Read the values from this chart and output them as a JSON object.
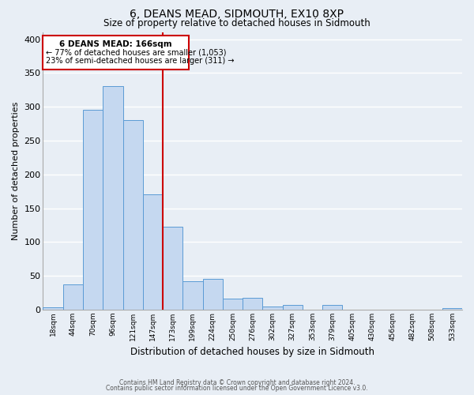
{
  "title": "6, DEANS MEAD, SIDMOUTH, EX10 8XP",
  "subtitle": "Size of property relative to detached houses in Sidmouth",
  "xlabel": "Distribution of detached houses by size in Sidmouth",
  "ylabel": "Number of detached properties",
  "categories": [
    "18sqm",
    "44sqm",
    "70sqm",
    "96sqm",
    "121sqm",
    "147sqm",
    "173sqm",
    "199sqm",
    "224sqm",
    "250sqm",
    "276sqm",
    "302sqm",
    "327sqm",
    "353sqm",
    "379sqm",
    "405sqm",
    "430sqm",
    "456sqm",
    "482sqm",
    "508sqm",
    "533sqm"
  ],
  "values": [
    3,
    37,
    296,
    330,
    280,
    170,
    123,
    42,
    46,
    16,
    17,
    5,
    7,
    0,
    7,
    0,
    0,
    0,
    0,
    0,
    2
  ],
  "bar_color": "#c5d8f0",
  "bar_edge_color": "#5b9bd5",
  "background_color": "#e8eef5",
  "grid_color": "#ffffff",
  "property_label": "6 DEANS MEAD: 166sqm",
  "pct_smaller": 77,
  "count_smaller": 1053,
  "pct_larger": 23,
  "count_larger": 311,
  "vline_color": "#cc0000",
  "box_edge_color": "#cc0000",
  "vline_index": 6,
  "ylim": [
    0,
    410
  ],
  "yticks": [
    0,
    50,
    100,
    150,
    200,
    250,
    300,
    350,
    400
  ],
  "footnote1": "Contains HM Land Registry data © Crown copyright and database right 2024.",
  "footnote2": "Contains public sector information licensed under the Open Government Licence v3.0."
}
